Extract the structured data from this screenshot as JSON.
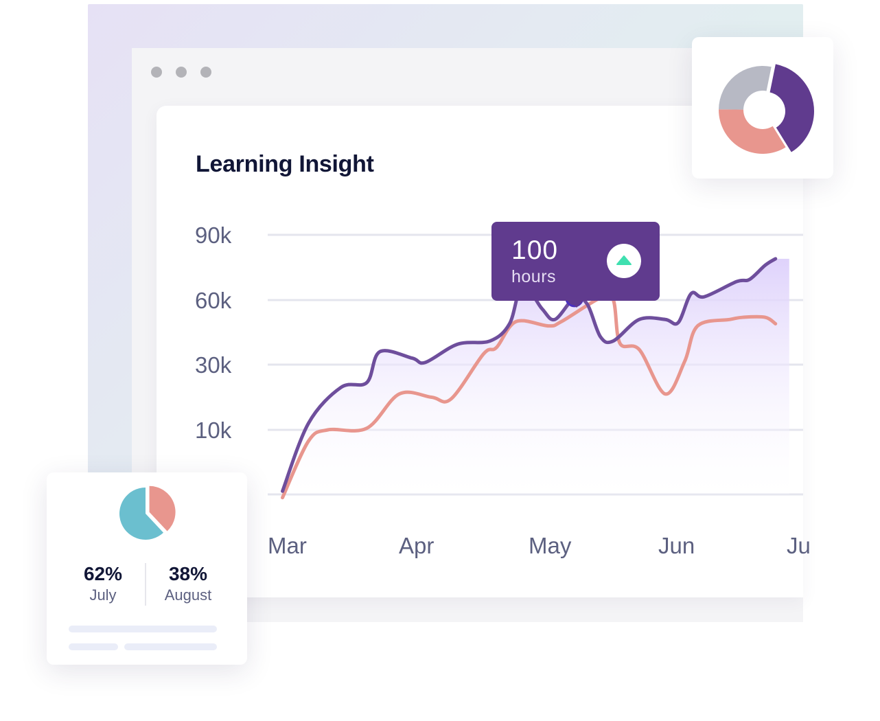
{
  "window": {
    "control_dots": 3
  },
  "title": "Learning Insight",
  "tooltip": {
    "value": "100",
    "unit": "hours",
    "trend": "up"
  },
  "colors": {
    "primary_series": "#6e4e9c",
    "secondary_series": "#e8968e",
    "area_fill": "#e3d9fb",
    "tooltip_bg": "#603b8e",
    "trend_up": "#3fe0b0",
    "pie_july": "#6bbfcf",
    "pie_august": "#e8968e",
    "donut_gray": "#b7b9c4"
  },
  "chart_data": {
    "type": "line",
    "x": [
      "Mar",
      "Apr",
      "May",
      "Jun",
      "Jul"
    ],
    "x_tick_labels": [
      "Mar",
      "Apr",
      "May",
      "Jun",
      "Ju"
    ],
    "y_tick_labels": [
      "90k",
      "60k",
      "30k",
      "10k"
    ],
    "y_ticks": [
      90000,
      60000,
      30000,
      10000
    ],
    "grid": true,
    "highlight": {
      "series": 0,
      "x": 2.2
    },
    "series": [
      {
        "fill": true,
        "points": [
          [
            -0.05,
            -9000
          ],
          [
            0.15,
            12000
          ],
          [
            0.4,
            23000
          ],
          [
            0.6,
            24500
          ],
          [
            0.7,
            36000
          ],
          [
            0.95,
            33000
          ],
          [
            1.05,
            31000
          ],
          [
            1.3,
            39500
          ],
          [
            1.55,
            41000
          ],
          [
            1.7,
            49000
          ],
          [
            1.8,
            67000
          ],
          [
            1.95,
            56000
          ],
          [
            2.05,
            51000
          ],
          [
            2.2,
            61000
          ],
          [
            2.3,
            58000
          ],
          [
            2.4,
            43000
          ],
          [
            2.5,
            41000
          ],
          [
            2.7,
            51000
          ],
          [
            2.9,
            51000
          ],
          [
            3.0,
            49500
          ],
          [
            3.1,
            63000
          ],
          [
            3.2,
            61500
          ],
          [
            3.45,
            68500
          ],
          [
            3.55,
            69500
          ],
          [
            3.67,
            76000
          ],
          [
            3.75,
            79000
          ]
        ]
      },
      {
        "fill": false,
        "points": [
          [
            -0.05,
            -11000
          ],
          [
            0.15,
            6500
          ],
          [
            0.3,
            10000
          ],
          [
            0.6,
            10500
          ],
          [
            0.85,
            21000
          ],
          [
            1.1,
            20000
          ],
          [
            1.25,
            19500
          ],
          [
            1.5,
            35000
          ],
          [
            1.6,
            38000
          ],
          [
            1.75,
            50000
          ],
          [
            2.0,
            48000
          ],
          [
            2.1,
            50000
          ],
          [
            2.4,
            61000
          ],
          [
            2.5,
            60000
          ],
          [
            2.55,
            40000
          ],
          [
            2.7,
            37000
          ],
          [
            2.9,
            21000
          ],
          [
            3.05,
            31500
          ],
          [
            3.15,
            48000
          ],
          [
            3.4,
            51000
          ],
          [
            3.5,
            52000
          ],
          [
            3.67,
            52000
          ],
          [
            3.75,
            49000
          ]
        ]
      }
    ]
  },
  "donut_chart": {
    "type": "pie",
    "segments": [
      {
        "value": 0.38,
        "color": "#603b8e"
      },
      {
        "value": 0.34,
        "color": "#e8968e"
      },
      {
        "value": 0.28,
        "color": "#b7b9c4"
      }
    ]
  },
  "pie_chart": {
    "type": "pie",
    "segments": [
      {
        "label": "July",
        "value": 62,
        "display": "62%",
        "color": "#6bbfcf"
      },
      {
        "label": "August",
        "value": 38,
        "display": "38%",
        "color": "#e8968e"
      }
    ]
  }
}
